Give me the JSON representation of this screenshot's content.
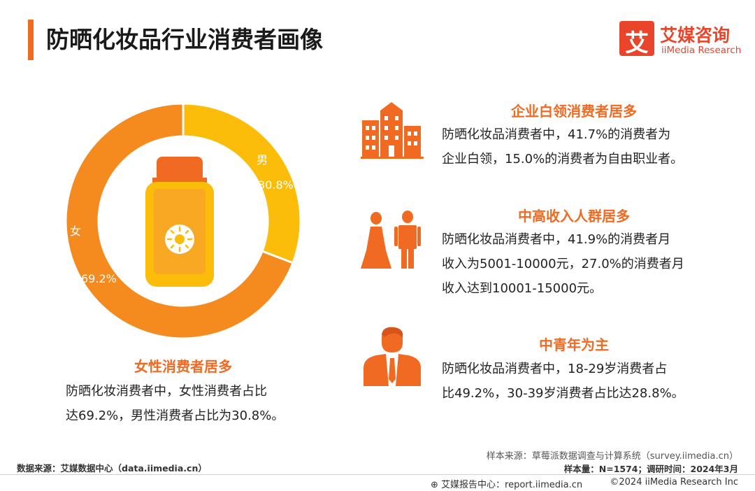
{
  "title": "防晒化妆品行业消费者画像",
  "logo": {
    "mark": "艾",
    "name_cn": "艾媒咨询",
    "name_en": "iiMedia Research"
  },
  "colors": {
    "accent": "#f06a22",
    "female": "#f58a1f",
    "male": "#fbbd0a",
    "logo": "#e8452b"
  },
  "chart_data": {
    "type": "pie",
    "style": "donut",
    "slices": [
      {
        "label": "男",
        "value": 30.8,
        "display": "30.8%",
        "color": "#fbbd0a"
      },
      {
        "label": "女",
        "value": 69.2,
        "display": "69.2%",
        "color": "#f58a1f"
      }
    ]
  },
  "gender": {
    "heading": "女性消费者居多",
    "lines": [
      "防晒化妆消费者中，女性消费者占比",
      "达69.2%，男性消费者占比为30.8%。"
    ]
  },
  "sections": [
    {
      "icon": "office-building-icon",
      "heading": "企业白领消费者居多",
      "lines": [
        "防晒化妆品消费者中，41.7%的消费者为",
        "企业白领，15.0%的消费者为自由职业者。"
      ]
    },
    {
      "icon": "people-icon",
      "heading": "中高收入人群居多",
      "lines": [
        "防晒化妆品消费者中，41.9%的消费者月",
        "收入为5001-10000元，27.0%的消费者月",
        "收入达到10001-15000元。"
      ]
    },
    {
      "icon": "businessman-icon",
      "heading": "中青年为主",
      "lines": [
        "防晒化妆品消费者中，18-29岁消费者占",
        "比49.2%，30-39岁消费者占比达28.8%。"
      ]
    }
  ],
  "source": {
    "sample_source": "样本来源：草莓派数据调查与计算系统（survey.iimedia.cn）",
    "sample_info": "样本量：N=1574；调研时间：2024年3月",
    "data_source": "数据来源：艾媒数据中心（data.iimedia.cn）"
  },
  "footer": {
    "report_center": "艾媒报告中心：report.iimedia.cn",
    "copyright": "©2024  iiMedia Research  Inc"
  }
}
